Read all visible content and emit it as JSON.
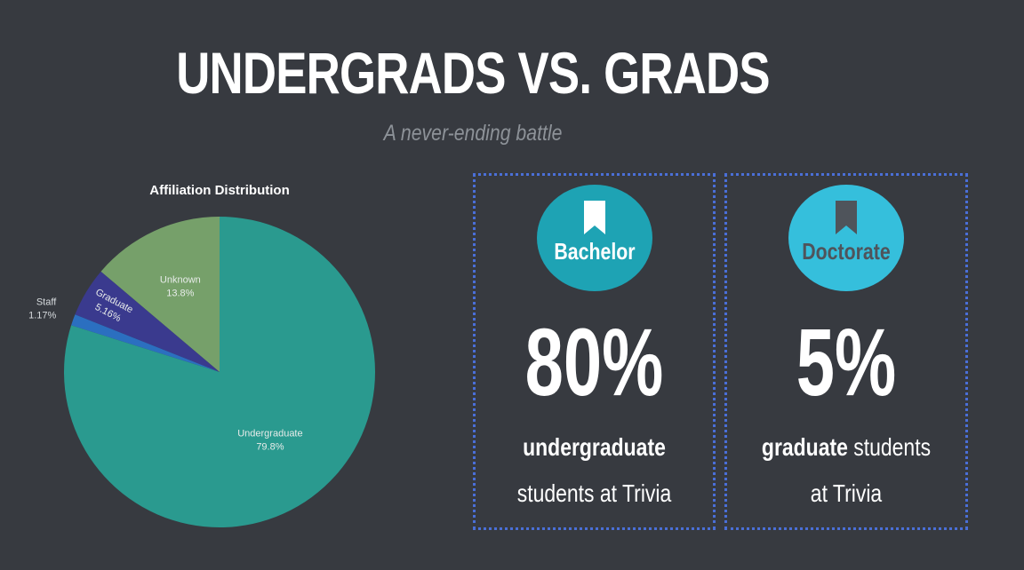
{
  "header": {
    "title": "UNDERGRADS VS. GRADS",
    "subtitle": "A never-ending battle"
  },
  "chart_data": {
    "type": "pie",
    "title": "Affiliation Distribution",
    "slices": [
      {
        "label": "Undergraduate",
        "value": 79.8,
        "display": "79.8%",
        "color": "#2a9a8f"
      },
      {
        "label": "Staff",
        "value": 1.17,
        "display": "1.17%",
        "color": "#2b6fc0"
      },
      {
        "label": "Graduate",
        "value": 5.16,
        "display": "5.16%",
        "color": "#3a3a8e"
      },
      {
        "label": "Unknown",
        "value": 13.8,
        "display": "13.8%",
        "color": "#76a06a"
      }
    ],
    "start_angle": "12 o'clock",
    "direction": "clockwise"
  },
  "cards": [
    {
      "badge_label": "Bachelor",
      "badge_color": "#1ea3b4",
      "badge_text_color": "#ffffff",
      "icon": "bookmark-icon",
      "icon_color": "#ffffff",
      "percent": "80%",
      "desc_strong": "undergraduate",
      "desc_rest": " students at Trivia"
    },
    {
      "badge_label": "Doctorate",
      "badge_color": "#35bfdc",
      "badge_text_color": "#4f545b",
      "icon": "bookmark-icon",
      "icon_color": "#4f545b",
      "percent": "5%",
      "desc_strong": "graduate",
      "desc_rest": " students at Trivia"
    }
  ]
}
